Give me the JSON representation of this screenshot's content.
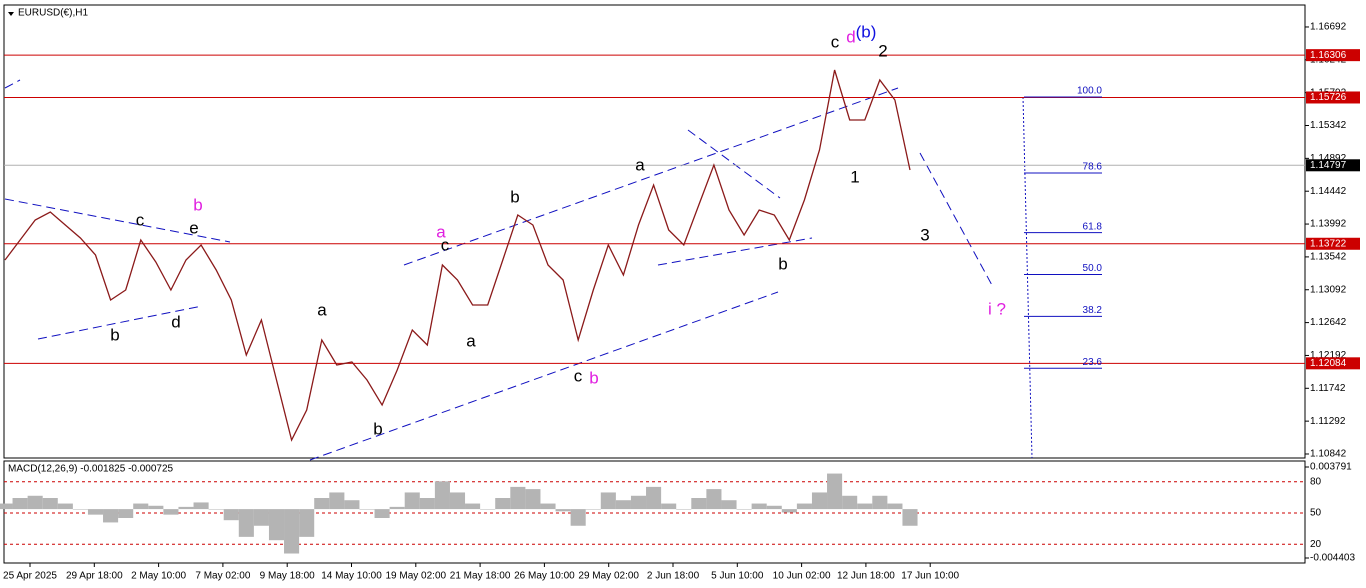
{
  "chart_data": {
    "type": "line",
    "title": "EURUSD(€),H1",
    "ylim": [
      1.10787,
      1.16993
    ],
    "yticks": [
      {
        "value": 1.16692,
        "label": "1.16692"
      },
      {
        "value": 1.16242,
        "label": "1.16242"
      },
      {
        "value": 1.15792,
        "label": "1.15792"
      },
      {
        "value": 1.15342,
        "label": "1.15342"
      },
      {
        "value": 1.14892,
        "label": "1.14892"
      },
      {
        "value": 1.14442,
        "label": "1.14442"
      },
      {
        "value": 1.13992,
        "label": "1.13992"
      },
      {
        "value": 1.13542,
        "label": "1.13542"
      },
      {
        "value": 1.13092,
        "label": "1.13092"
      },
      {
        "value": 1.12642,
        "label": "1.12642"
      },
      {
        "value": 1.12192,
        "label": "1.12192"
      },
      {
        "value": 1.11742,
        "label": "1.11742"
      },
      {
        "value": 1.11292,
        "label": "1.11292"
      },
      {
        "value": 1.10842,
        "label": "1.10842"
      }
    ],
    "x_labels": [
      "25 Apr 2025",
      "29 Apr 18:00",
      "2 May 10:00",
      "7 May 02:00",
      "9 May 18:00",
      "14 May 10:00",
      "19 May 02:00",
      "21 May 18:00",
      "26 May 10:00",
      "29 May 02:00",
      "2 Jun 18:00",
      "5 Jun 10:00",
      "10 Jun 02:00",
      "12 Jun 18:00",
      "17 Jun 10:00"
    ],
    "series": [
      {
        "name": "EURUSD",
        "color": "#8b1a1a",
        "values": [
          1.135,
          1.13774,
          1.14048,
          1.14157,
          1.13979,
          1.13801,
          1.13568,
          1.12952,
          1.13089,
          1.13774,
          1.13472,
          1.13089,
          1.135,
          1.13705,
          1.13363,
          1.12952,
          1.12198,
          1.12678,
          1.11856,
          1.11034,
          1.11445,
          1.12404,
          1.12061,
          1.12102,
          1.11856,
          1.11513,
          1.11993,
          1.12541,
          1.12335,
          1.13431,
          1.13226,
          1.12883,
          1.12883,
          1.135,
          1.14116,
          1.13979,
          1.13431,
          1.13226,
          1.12404,
          1.13089,
          1.13705,
          1.13294,
          1.13979,
          1.14527,
          1.13911,
          1.13705,
          1.14253,
          1.14801,
          1.14185,
          1.13842,
          1.14185,
          1.14116,
          1.13774,
          1.14322,
          1.15007,
          1.16103,
          1.15418,
          1.15418,
          1.15966,
          1.15692,
          1.14733
        ]
      }
    ],
    "hlines": [
      {
        "value": 1.16306,
        "label": "1.16306"
      },
      {
        "value": 1.15726,
        "label": "1.15726"
      },
      {
        "value": 1.13722,
        "label": "1.13722"
      },
      {
        "value": 1.12084,
        "label": "1.12084"
      }
    ],
    "hline_color": "#cc0000",
    "current_price": {
      "value": 1.14797,
      "label": "1.14797"
    },
    "fib_levels": [
      {
        "value": 100,
        "label": "100.0"
      },
      {
        "value": 78.6,
        "label": "78.6"
      },
      {
        "value": 61.8,
        "label": "61.8"
      },
      {
        "value": 50,
        "label": "50.0"
      },
      {
        "value": 38.2,
        "label": "38.2"
      },
      {
        "value": 23.6,
        "label": "23.6"
      }
    ],
    "annotations": [
      {
        "text": "c",
        "color": "#000000"
      },
      {
        "text": "d",
        "color": "#e020e0"
      },
      {
        "text": "(b)",
        "color": "#1010e0"
      },
      {
        "text": "2",
        "color": "#000000"
      },
      {
        "text": "1",
        "color": "#000000"
      },
      {
        "text": "3",
        "color": "#000000"
      },
      {
        "text": "i ?",
        "color": "#e020e0"
      },
      {
        "text": "a",
        "color": "#000000"
      },
      {
        "text": "b",
        "color": "#000000"
      },
      {
        "text": "a",
        "color": "#e020e0"
      },
      {
        "text": "c",
        "color": "#000000"
      },
      {
        "text": "a",
        "color": "#000000"
      },
      {
        "text": "a",
        "color": "#000000"
      },
      {
        "text": "b",
        "color": "#000000"
      },
      {
        "text": "c",
        "color": "#000000"
      },
      {
        "text": "b",
        "color": "#e020e0"
      },
      {
        "text": "b",
        "color": "#000000"
      },
      {
        "text": "b",
        "color": "#e020e0"
      },
      {
        "text": "c",
        "color": "#000000"
      },
      {
        "text": "e",
        "color": "#000000"
      },
      {
        "text": "b",
        "color": "#000000"
      },
      {
        "text": "d",
        "color": "#000000"
      }
    ],
    "macd": {
      "title": "MACD(12,26,9) -0.001825 -0.000725",
      "color": "#b4b4b4",
      "ylim": [
        -0.004403,
        0.003791
      ],
      "yticks": [
        {
          "value": 0.003791,
          "label": "0.003791"
        },
        {
          "value": -0.004403,
          "label": "-0.004403"
        }
      ],
      "levels_lim": [
        0,
        100
      ],
      "levels": [
        80,
        50,
        20
      ],
      "values": [
        0.0005,
        0.001,
        0.0012,
        0.001,
        0.0005,
        0,
        -0.0005,
        -0.0012,
        -0.0008,
        0.0005,
        0.0003,
        -0.0005,
        0.0002,
        0.0006,
        0,
        -0.001,
        -0.0025,
        -0.0015,
        -0.0028,
        -0.004,
        -0.0025,
        0.001,
        0.0015,
        0.0008,
        0,
        -0.0008,
        0.0002,
        0.0015,
        0.001,
        0.0025,
        0.0015,
        0.0005,
        0,
        0.001,
        0.002,
        0.0018,
        0.0005,
        -0.0002,
        -0.0015,
        0,
        0.0015,
        0.0008,
        0.0012,
        0.002,
        0.0005,
        0,
        0.001,
        0.0018,
        0.0008,
        0,
        0.0005,
        0.0003,
        -0.0003,
        0.0005,
        0.0015,
        0.0032,
        0.0012,
        0.0005,
        0.0012,
        0.0005,
        -0.0015
      ]
    }
  }
}
